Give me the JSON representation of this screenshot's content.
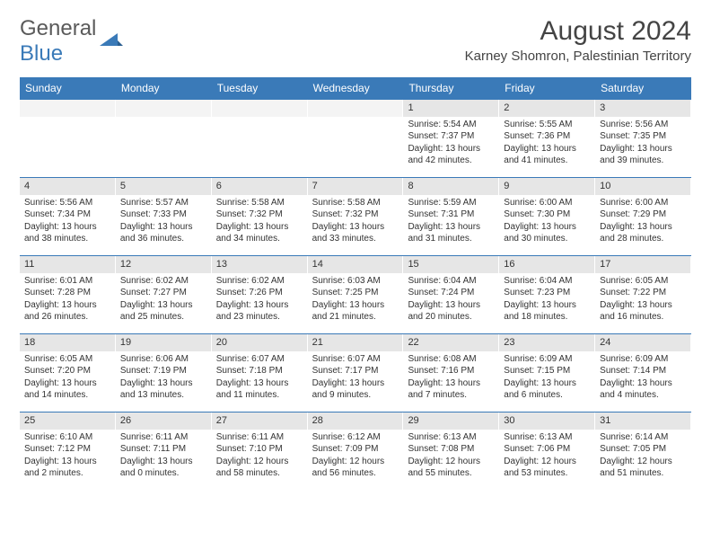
{
  "logo": {
    "text1": "General",
    "text2": "Blue",
    "icon_color": "#3a7ab8"
  },
  "header": {
    "title": "August 2024",
    "location": "Karney Shomron, Palestinian Territory"
  },
  "colors": {
    "accent": "#3a7ab8",
    "daynum_bg": "#e6e6e6",
    "text": "#333333"
  },
  "weekdays": [
    "Sunday",
    "Monday",
    "Tuesday",
    "Wednesday",
    "Thursday",
    "Friday",
    "Saturday"
  ],
  "weeks": [
    [
      {
        "n": "",
        "sr": "",
        "ss": "",
        "dl": ""
      },
      {
        "n": "",
        "sr": "",
        "ss": "",
        "dl": ""
      },
      {
        "n": "",
        "sr": "",
        "ss": "",
        "dl": ""
      },
      {
        "n": "",
        "sr": "",
        "ss": "",
        "dl": ""
      },
      {
        "n": "1",
        "sr": "Sunrise: 5:54 AM",
        "ss": "Sunset: 7:37 PM",
        "dl": "Daylight: 13 hours and 42 minutes."
      },
      {
        "n": "2",
        "sr": "Sunrise: 5:55 AM",
        "ss": "Sunset: 7:36 PM",
        "dl": "Daylight: 13 hours and 41 minutes."
      },
      {
        "n": "3",
        "sr": "Sunrise: 5:56 AM",
        "ss": "Sunset: 7:35 PM",
        "dl": "Daylight: 13 hours and 39 minutes."
      }
    ],
    [
      {
        "n": "4",
        "sr": "Sunrise: 5:56 AM",
        "ss": "Sunset: 7:34 PM",
        "dl": "Daylight: 13 hours and 38 minutes."
      },
      {
        "n": "5",
        "sr": "Sunrise: 5:57 AM",
        "ss": "Sunset: 7:33 PM",
        "dl": "Daylight: 13 hours and 36 minutes."
      },
      {
        "n": "6",
        "sr": "Sunrise: 5:58 AM",
        "ss": "Sunset: 7:32 PM",
        "dl": "Daylight: 13 hours and 34 minutes."
      },
      {
        "n": "7",
        "sr": "Sunrise: 5:58 AM",
        "ss": "Sunset: 7:32 PM",
        "dl": "Daylight: 13 hours and 33 minutes."
      },
      {
        "n": "8",
        "sr": "Sunrise: 5:59 AM",
        "ss": "Sunset: 7:31 PM",
        "dl": "Daylight: 13 hours and 31 minutes."
      },
      {
        "n": "9",
        "sr": "Sunrise: 6:00 AM",
        "ss": "Sunset: 7:30 PM",
        "dl": "Daylight: 13 hours and 30 minutes."
      },
      {
        "n": "10",
        "sr": "Sunrise: 6:00 AM",
        "ss": "Sunset: 7:29 PM",
        "dl": "Daylight: 13 hours and 28 minutes."
      }
    ],
    [
      {
        "n": "11",
        "sr": "Sunrise: 6:01 AM",
        "ss": "Sunset: 7:28 PM",
        "dl": "Daylight: 13 hours and 26 minutes."
      },
      {
        "n": "12",
        "sr": "Sunrise: 6:02 AM",
        "ss": "Sunset: 7:27 PM",
        "dl": "Daylight: 13 hours and 25 minutes."
      },
      {
        "n": "13",
        "sr": "Sunrise: 6:02 AM",
        "ss": "Sunset: 7:26 PM",
        "dl": "Daylight: 13 hours and 23 minutes."
      },
      {
        "n": "14",
        "sr": "Sunrise: 6:03 AM",
        "ss": "Sunset: 7:25 PM",
        "dl": "Daylight: 13 hours and 21 minutes."
      },
      {
        "n": "15",
        "sr": "Sunrise: 6:04 AM",
        "ss": "Sunset: 7:24 PM",
        "dl": "Daylight: 13 hours and 20 minutes."
      },
      {
        "n": "16",
        "sr": "Sunrise: 6:04 AM",
        "ss": "Sunset: 7:23 PM",
        "dl": "Daylight: 13 hours and 18 minutes."
      },
      {
        "n": "17",
        "sr": "Sunrise: 6:05 AM",
        "ss": "Sunset: 7:22 PM",
        "dl": "Daylight: 13 hours and 16 minutes."
      }
    ],
    [
      {
        "n": "18",
        "sr": "Sunrise: 6:05 AM",
        "ss": "Sunset: 7:20 PM",
        "dl": "Daylight: 13 hours and 14 minutes."
      },
      {
        "n": "19",
        "sr": "Sunrise: 6:06 AM",
        "ss": "Sunset: 7:19 PM",
        "dl": "Daylight: 13 hours and 13 minutes."
      },
      {
        "n": "20",
        "sr": "Sunrise: 6:07 AM",
        "ss": "Sunset: 7:18 PM",
        "dl": "Daylight: 13 hours and 11 minutes."
      },
      {
        "n": "21",
        "sr": "Sunrise: 6:07 AM",
        "ss": "Sunset: 7:17 PM",
        "dl": "Daylight: 13 hours and 9 minutes."
      },
      {
        "n": "22",
        "sr": "Sunrise: 6:08 AM",
        "ss": "Sunset: 7:16 PM",
        "dl": "Daylight: 13 hours and 7 minutes."
      },
      {
        "n": "23",
        "sr": "Sunrise: 6:09 AM",
        "ss": "Sunset: 7:15 PM",
        "dl": "Daylight: 13 hours and 6 minutes."
      },
      {
        "n": "24",
        "sr": "Sunrise: 6:09 AM",
        "ss": "Sunset: 7:14 PM",
        "dl": "Daylight: 13 hours and 4 minutes."
      }
    ],
    [
      {
        "n": "25",
        "sr": "Sunrise: 6:10 AM",
        "ss": "Sunset: 7:12 PM",
        "dl": "Daylight: 13 hours and 2 minutes."
      },
      {
        "n": "26",
        "sr": "Sunrise: 6:11 AM",
        "ss": "Sunset: 7:11 PM",
        "dl": "Daylight: 13 hours and 0 minutes."
      },
      {
        "n": "27",
        "sr": "Sunrise: 6:11 AM",
        "ss": "Sunset: 7:10 PM",
        "dl": "Daylight: 12 hours and 58 minutes."
      },
      {
        "n": "28",
        "sr": "Sunrise: 6:12 AM",
        "ss": "Sunset: 7:09 PM",
        "dl": "Daylight: 12 hours and 56 minutes."
      },
      {
        "n": "29",
        "sr": "Sunrise: 6:13 AM",
        "ss": "Sunset: 7:08 PM",
        "dl": "Daylight: 12 hours and 55 minutes."
      },
      {
        "n": "30",
        "sr": "Sunrise: 6:13 AM",
        "ss": "Sunset: 7:06 PM",
        "dl": "Daylight: 12 hours and 53 minutes."
      },
      {
        "n": "31",
        "sr": "Sunrise: 6:14 AM",
        "ss": "Sunset: 7:05 PM",
        "dl": "Daylight: 12 hours and 51 minutes."
      }
    ]
  ]
}
